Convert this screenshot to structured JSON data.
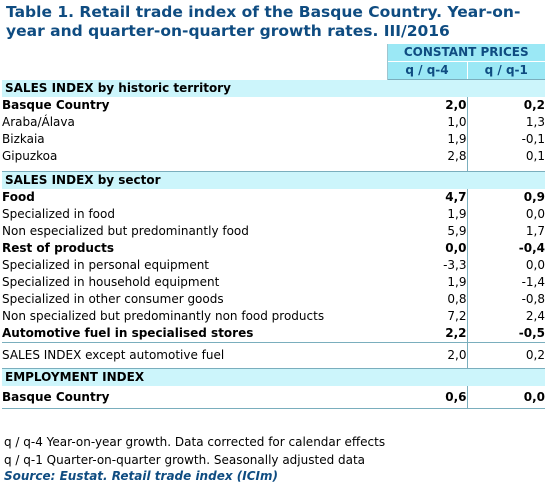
{
  "title_line1": "Table 1. Retail trade index of the Basque Country. Year-on-",
  "title_line2": "year and quarter-on-quarter growth rates. III/2016",
  "header": {
    "group": "CONSTANT PRICES",
    "col1": "q / q-4",
    "col2": "q / q-1"
  },
  "sections": {
    "territory": {
      "title": "SALES INDEX by historic territory",
      "rows": [
        {
          "label": "Basque Country",
          "v1": "2,0",
          "v2": "0,2"
        },
        {
          "label": "Araba/Álava",
          "v1": "1,0",
          "v2": "1,3"
        },
        {
          "label": "Bizkaia",
          "v1": "1,9",
          "v2": "-0,1"
        },
        {
          "label": "Gipuzkoa",
          "v1": "2,8",
          "v2": "0,1"
        }
      ]
    },
    "sector": {
      "title": "SALES INDEX by sector",
      "rows": [
        {
          "label": "Food",
          "v1": "4,7",
          "v2": "0,9"
        },
        {
          "label": "Specialized in food",
          "v1": "1,9",
          "v2": "0,0"
        },
        {
          "label": "Non especialized but predominantly food",
          "v1": "5,9",
          "v2": "1,7"
        },
        {
          "label": "Rest of products",
          "v1": "0,0",
          "v2": "-0,4"
        },
        {
          "label": "Specialized in personal equipment",
          "v1": "-3,3",
          "v2": "0,0"
        },
        {
          "label": "Specialized in household equipment",
          "v1": "1,9",
          "v2": "-1,4"
        },
        {
          "label": "Specialized in other consumer goods",
          "v1": "0,8",
          "v2": "-0,8"
        },
        {
          "label": "Non specialized but predominantly non food products",
          "v1": "7,2",
          "v2": "2,4"
        },
        {
          "label": "Automotive fuel in specialised stores",
          "v1": "2,2",
          "v2": "-0,5"
        }
      ]
    },
    "except_fuel": {
      "label": "SALES INDEX except automotive fuel",
      "v1": "2,0",
      "v2": "0,2"
    },
    "employment": {
      "title": "EMPLOYMENT INDEX",
      "rows": [
        {
          "label": "Basque Country",
          "v1": "0,6",
          "v2": "0,0"
        }
      ]
    }
  },
  "notes": {
    "note1": "q / q-4 Year-on-year growth. Data corrected for calendar effects",
    "note2": "q / q-1 Quarter-on-quarter growth. Seasonally adjusted data",
    "source": "Source: Eustat. Retail trade index (ICIm)"
  }
}
